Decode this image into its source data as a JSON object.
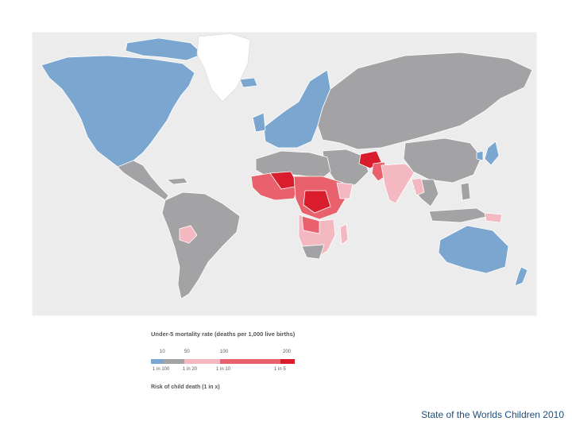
{
  "map": {
    "colors": {
      "ocean": "#ececec",
      "low": "#7aa6cf",
      "mid": "#a3a3a5",
      "high": "#f4b8c0",
      "higher": "#e9616d",
      "highest": "#d91d2d",
      "greenland": "#ffffff",
      "border": "#ffffff"
    }
  },
  "legend": {
    "title": "Under-5 mortality rate (deaths per 1,000 live births)",
    "ticks": [
      "10",
      "50",
      "100",
      "200"
    ],
    "risk_labels": [
      "1 in 100",
      "1 in 20",
      "1 in 10",
      "1 in 5"
    ],
    "footer": "Risk of child death (1 in x)",
    "segments": [
      {
        "color": "#7aa6cf"
      },
      {
        "color": "#a3a3a5"
      },
      {
        "color": "#f4b8c0"
      },
      {
        "color": "#e9616d"
      },
      {
        "color": "#d91d2d"
      }
    ]
  },
  "source": "State of the Worlds Children 2010"
}
